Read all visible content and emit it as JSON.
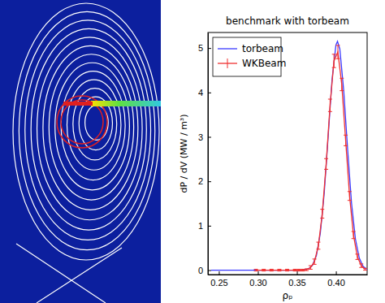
{
  "chart_data": {
    "type": "line",
    "title": "benchmark with torbeam",
    "x_label": "ρₚ",
    "y_label": "dP / dV (MW / m³)",
    "xlim": [
      0.236,
      0.44
    ],
    "ylim": [
      -0.1,
      5.35
    ],
    "xticks": [
      0.25,
      {
        "value": 0.3,
        "label": "0.30"
      },
      0.35,
      {
        "value": 0.4,
        "label": "0.40"
      }
    ],
    "yticks": [
      0,
      1,
      2,
      3,
      4,
      5
    ],
    "grid": false,
    "legend": "upper left",
    "series": [
      {
        "name": "torbeam",
        "color": "#3a3aff",
        "line_style": "solid",
        "x": [
          0.24,
          0.26,
          0.28,
          0.3,
          0.32,
          0.34,
          0.35,
          0.355,
          0.36,
          0.365,
          0.37,
          0.375,
          0.38,
          0.385,
          0.39,
          0.395,
          0.4,
          0.402,
          0.405,
          0.41,
          0.415,
          0.42,
          0.425,
          0.43,
          0.435,
          0.44
        ],
        "values": [
          0,
          0,
          0,
          0,
          0,
          0,
          0,
          0,
          0.01,
          0.03,
          0.11,
          0.33,
          0.83,
          1.73,
          2.99,
          4.28,
          5.07,
          5.15,
          4.98,
          4.04,
          2.72,
          1.51,
          0.7,
          0.27,
          0.08,
          0.02
        ]
      },
      {
        "name": "WKBeam",
        "color": "#f03030",
        "line_style": "solid",
        "x": [
          0.2975,
          0.3075,
          0.3175,
          0.3275,
          0.3375,
          0.3475,
          0.3525,
          0.3575,
          0.3625,
          0.3675,
          0.3725,
          0.3775,
          0.3825,
          0.3875,
          0.3925,
          0.3975,
          0.4025,
          0.4075,
          0.4125,
          0.4175,
          0.4225,
          0.4275,
          0.4325,
          0.4375
        ],
        "values": [
          0,
          0,
          0,
          0,
          0,
          0,
          0,
          0,
          0.01,
          0.06,
          0.19,
          0.55,
          1.27,
          2.39,
          3.71,
          4.71,
          4.91,
          4.18,
          2.92,
          1.67,
          0.79,
          0.3,
          0.1,
          0.02
        ],
        "errors": [
          0.02,
          0.02,
          0.02,
          0.02,
          0.02,
          0.02,
          0.02,
          0.02,
          0.02,
          0.04,
          0.06,
          0.08,
          0.1,
          0.12,
          0.14,
          0.15,
          0.15,
          0.14,
          0.12,
          0.1,
          0.08,
          0.06,
          0.04,
          0.02
        ]
      }
    ]
  }
}
